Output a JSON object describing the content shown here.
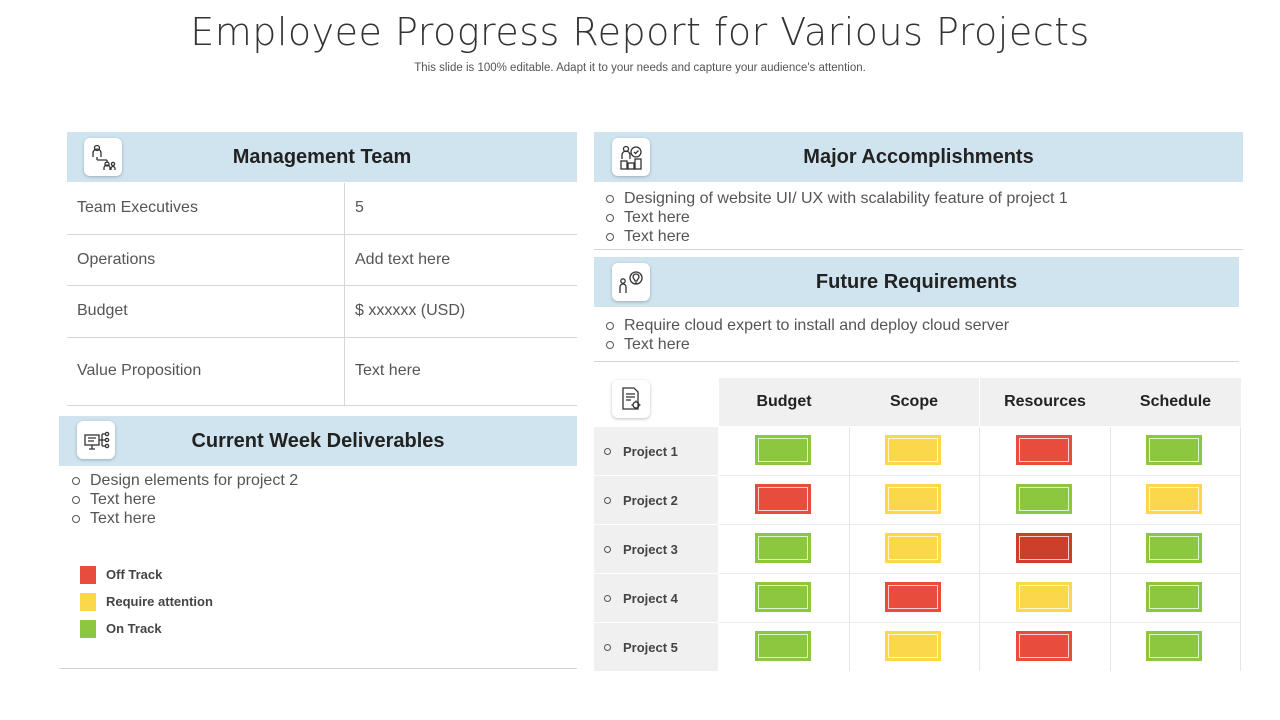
{
  "header": {
    "title": "Employee Progress Report for Various Projects",
    "subtitle": "This slide is 100% editable. Adapt it to your needs and capture your audience's attention."
  },
  "management": {
    "title": "Management Team",
    "icon": "team-hierarchy-icon",
    "rows": [
      {
        "label": "Team Executives",
        "value": "5"
      },
      {
        "label": "Operations",
        "value": "Add text here"
      },
      {
        "label": "Budget",
        "value": "$ xxxxxx  (USD)"
      },
      {
        "label": "Value Proposition",
        "value": "Text here"
      }
    ]
  },
  "accomplishments": {
    "title": "Major Accomplishments",
    "icon": "trophy-person-icon",
    "items": [
      "Designing of website UI/ UX with scalability feature  of project 1",
      "Text here",
      "Text here"
    ]
  },
  "requirements": {
    "title": "Future Requirements",
    "icon": "person-idea-icon",
    "items": [
      "Require cloud expert to install and deploy cloud server",
      "Text here"
    ]
  },
  "deliverables": {
    "title": "Current Week Deliverables",
    "icon": "presentation-network-icon",
    "items": [
      "Design elements for project 2",
      "Text here",
      "Text here"
    ]
  },
  "legend": [
    {
      "label": "Off Track",
      "color": "#e74c3c"
    },
    {
      "label": "Require attention",
      "color": "#fbd84a"
    },
    {
      "label": "On Track",
      "color": "#8dc63f"
    }
  ],
  "status_colors": {
    "red": "#e74c3c",
    "darkred": "#cc3f2a",
    "yellow": "#fbd84a",
    "green": "#8dc63f"
  },
  "status_grid": {
    "icon": "document-gear-icon",
    "columns": [
      "Budget",
      "Scope",
      "Resources",
      "Schedule"
    ],
    "projects": [
      {
        "name": "Project 1",
        "status": [
          "green",
          "yellow",
          "red",
          "green"
        ]
      },
      {
        "name": "Project 2",
        "status": [
          "red",
          "yellow",
          "green",
          "yellow"
        ]
      },
      {
        "name": "Project 3",
        "status": [
          "green",
          "yellow",
          "darkred",
          "green"
        ]
      },
      {
        "name": "Project 4",
        "status": [
          "green",
          "red",
          "yellow",
          "green"
        ]
      },
      {
        "name": "Project 5",
        "status": [
          "green",
          "yellow",
          "red",
          "green"
        ]
      }
    ]
  }
}
